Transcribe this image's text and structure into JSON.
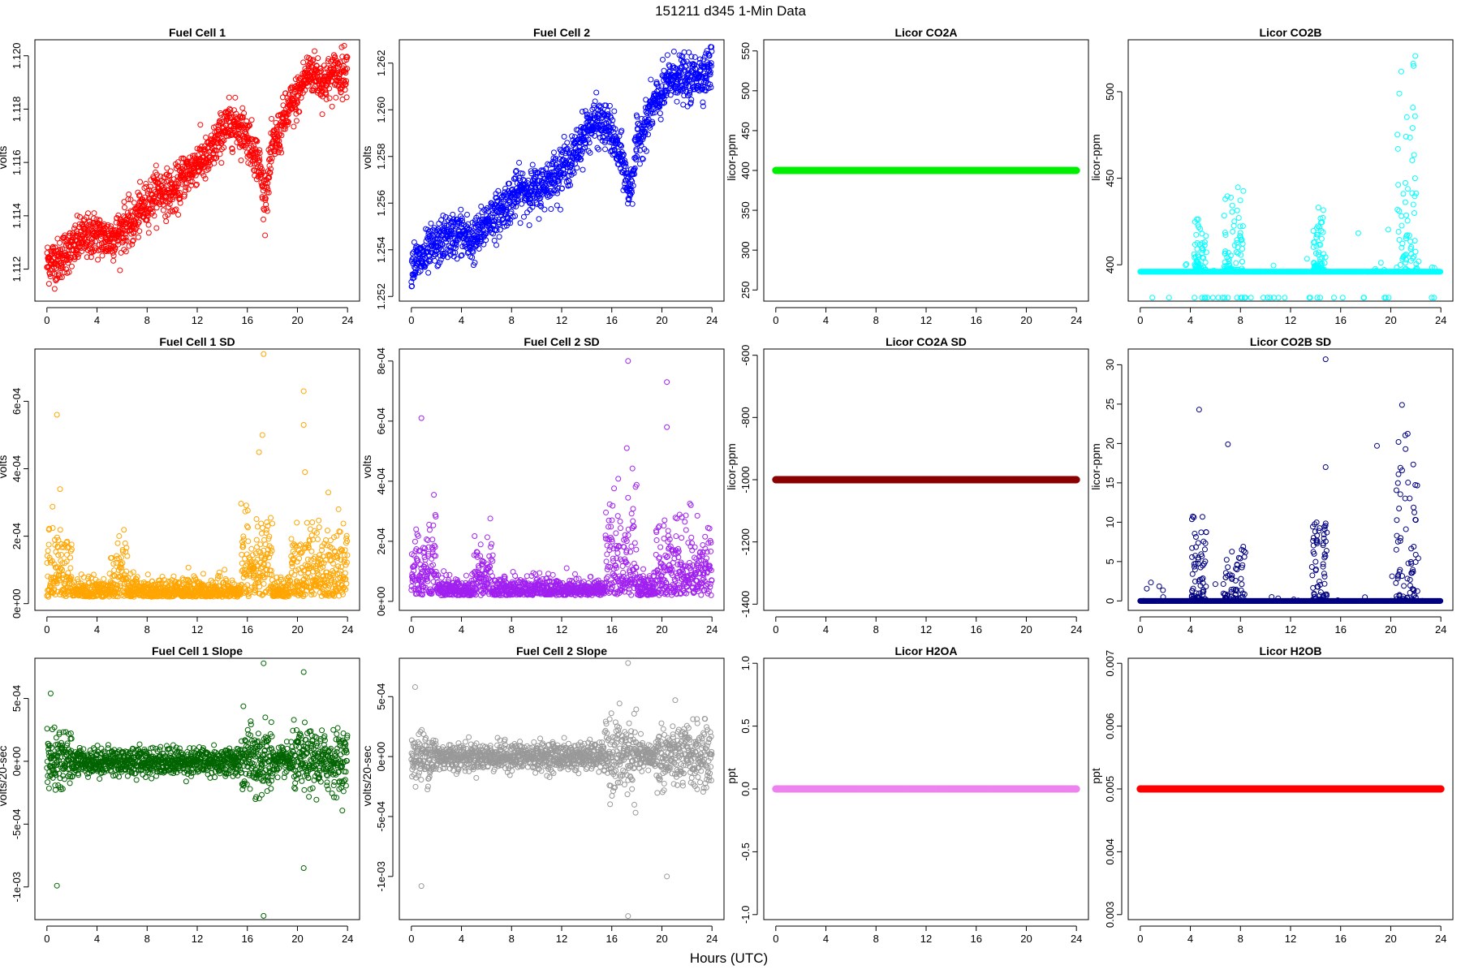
{
  "figure": {
    "title": "151211    d345    1-Min Data",
    "xlabel": "Hours (UTC)"
  },
  "chart_data": [
    {
      "type": "scatter",
      "title": "Fuel Cell 1",
      "ylabel": "volts",
      "color": "#ff0000",
      "marker": "open-circle",
      "xlim": [
        0,
        24
      ],
      "ylim": [
        1.1108,
        1.1206
      ],
      "xticks": [
        "0",
        "4",
        "8",
        "12",
        "16",
        "20",
        "24"
      ],
      "yticks": [
        {
          "v": 1.112,
          "label": "1.112"
        },
        {
          "v": 1.114,
          "label": "1.114"
        },
        {
          "v": 1.116,
          "label": "1.116"
        },
        {
          "v": 1.118,
          "label": "1.118"
        },
        {
          "v": 1.12,
          "label": "1.120"
        }
      ],
      "trend_hours": [
        0,
        1,
        2,
        3,
        4,
        5,
        6,
        7,
        8,
        9,
        10,
        11,
        12,
        13,
        14,
        15,
        16,
        16.5,
        17,
        17.3,
        17.6,
        18,
        19,
        20,
        21,
        22,
        23,
        24
      ],
      "trend_values": [
        1.1122,
        1.1124,
        1.1128,
        1.1132,
        1.1133,
        1.1131,
        1.1135,
        1.1138,
        1.1145,
        1.115,
        1.1148,
        1.1155,
        1.116,
        1.1162,
        1.1172,
        1.1175,
        1.117,
        1.1165,
        1.1158,
        1.1148,
        1.1152,
        1.1165,
        1.1177,
        1.1185,
        1.1195,
        1.119,
        1.1193,
        1.1195
      ],
      "noise_fraction": 0.07
    },
    {
      "type": "scatter",
      "title": "Fuel Cell 2",
      "ylabel": "volts",
      "color": "#0000ff",
      "marker": "open-circle",
      "xlim": [
        0,
        24
      ],
      "ylim": [
        1.2518,
        1.263
      ],
      "xticks": [
        "0",
        "4",
        "8",
        "12",
        "16",
        "20",
        "24"
      ],
      "yticks": [
        {
          "v": 1.252,
          "label": "1.252"
        },
        {
          "v": 1.254,
          "label": "1.254"
        },
        {
          "v": 1.256,
          "label": "1.256"
        },
        {
          "v": 1.258,
          "label": "1.258"
        },
        {
          "v": 1.26,
          "label": "1.260"
        },
        {
          "v": 1.262,
          "label": "1.262"
        }
      ],
      "trend_hours": [
        0,
        1,
        2,
        3,
        4,
        5,
        6,
        7,
        8,
        9,
        10,
        11,
        12,
        13,
        14,
        15,
        16,
        16.5,
        17,
        17.3,
        17.6,
        18,
        19,
        20,
        21,
        22,
        23,
        24
      ],
      "trend_values": [
        1.2533,
        1.2537,
        1.2542,
        1.2546,
        1.2547,
        1.2543,
        1.2552,
        1.2556,
        1.2562,
        1.2566,
        1.2565,
        1.257,
        1.2575,
        1.258,
        1.2592,
        1.2595,
        1.259,
        1.2582,
        1.2575,
        1.2565,
        1.257,
        1.2585,
        1.2598,
        1.2607,
        1.2615,
        1.2612,
        1.2615,
        1.2618
      ],
      "noise_fraction": 0.07
    },
    {
      "type": "scatter",
      "title": "Licor CO2A",
      "ylabel": "licor-ppm",
      "color": "#00ee00",
      "marker": "open-circle",
      "xlim": [
        0,
        24
      ],
      "ylim": [
        236,
        564
      ],
      "xticks": [
        "0",
        "4",
        "8",
        "12",
        "16",
        "20",
        "24"
      ],
      "yticks": [
        {
          "v": 250,
          "label": "250"
        },
        {
          "v": 300,
          "label": "300"
        },
        {
          "v": 350,
          "label": "350"
        },
        {
          "v": 400,
          "label": "400"
        },
        {
          "v": 450,
          "label": "450"
        },
        {
          "v": 500,
          "label": "500"
        },
        {
          "v": 550,
          "label": "550"
        }
      ],
      "constant_value": 400
    },
    {
      "type": "scatter",
      "title": "Licor CO2B",
      "ylabel": "licor-ppm",
      "color": "#00ffff",
      "marker": "open-circle",
      "xlim": [
        0,
        24
      ],
      "ylim": [
        379,
        530
      ],
      "xticks": [
        "0",
        "4",
        "8",
        "12",
        "16",
        "20",
        "24"
      ],
      "yticks": [
        {
          "v": 400,
          "label": "400"
        },
        {
          "v": 450,
          "label": "450"
        },
        {
          "v": 500,
          "label": "500"
        }
      ],
      "baseline_value": 396,
      "spike_clusters": [
        {
          "center": 4.8,
          "width": 0.5,
          "max": 427
        },
        {
          "center": 7.5,
          "width": 0.8,
          "max": 446
        },
        {
          "center": 14.3,
          "width": 0.5,
          "max": 435
        },
        {
          "center": 21.3,
          "width": 0.8,
          "max": 525
        }
      ]
    },
    {
      "type": "scatter",
      "title": "Fuel Cell 1 SD",
      "ylabel": "volts",
      "color": "#ffa500",
      "marker": "open-circle",
      "xlim": [
        0,
        24
      ],
      "ylim": [
        -2e-05,
        0.000755
      ],
      "xticks": [
        "0",
        "4",
        "8",
        "12",
        "16",
        "20",
        "24"
      ],
      "yticks": [
        {
          "v": 0,
          "label": "0e+00"
        },
        {
          "v": 0.0002,
          "label": "2e-04"
        },
        {
          "v": 0.0004,
          "label": "4e-04"
        },
        {
          "v": 0.0006,
          "label": "6e-04"
        }
      ],
      "baseline_value": 2e-05,
      "noisy_ranges": [
        [
          0,
          2,
          0.0003
        ],
        [
          5,
          6.5,
          0.00024
        ],
        [
          15.5,
          18,
          0.00038
        ],
        [
          19.5,
          24,
          0.00032
        ]
      ],
      "outliers": [
        [
          0.8,
          0.00056
        ],
        [
          17.3,
          0.00074
        ],
        [
          17.2,
          0.0005
        ],
        [
          20.5,
          0.00063
        ],
        [
          20.5,
          0.00053
        ],
        [
          20.6,
          0.00039
        ]
      ]
    },
    {
      "type": "scatter",
      "title": "Fuel Cell 2 SD",
      "ylabel": "volts",
      "color": "#a020f0",
      "marker": "open-circle",
      "xlim": [
        0,
        24
      ],
      "ylim": [
        -3e-05,
        0.00084
      ],
      "xticks": [
        "0",
        "4",
        "8",
        "12",
        "16",
        "20",
        "24"
      ],
      "yticks": [
        {
          "v": 0,
          "label": "0e+00"
        },
        {
          "v": 0.0002,
          "label": "2e-04"
        },
        {
          "v": 0.0004,
          "label": "4e-04"
        },
        {
          "v": 0.0006,
          "label": "6e-04"
        },
        {
          "v": 0.0008,
          "label": "8e-04"
        }
      ],
      "baseline_value": 2e-05,
      "noisy_ranges": [
        [
          0,
          2,
          0.00035
        ],
        [
          5,
          6.5,
          0.00026
        ],
        [
          15.5,
          18,
          0.00045
        ],
        [
          19.5,
          24,
          0.00035
        ]
      ],
      "outliers": [
        [
          0.8,
          0.00061
        ],
        [
          17.3,
          0.0008
        ],
        [
          17.2,
          0.00051
        ],
        [
          20.4,
          0.00073
        ],
        [
          20.4,
          0.00058
        ]
      ]
    },
    {
      "type": "scatter",
      "title": "Licor CO2A SD",
      "ylabel": "licor-ppm",
      "color": "#8b0000",
      "marker": "open-circle",
      "xlim": [
        0,
        24
      ],
      "ylim": [
        -1420,
        -580
      ],
      "xticks": [
        "0",
        "4",
        "8",
        "12",
        "16",
        "20",
        "24"
      ],
      "yticks": [
        {
          "v": -1400,
          "label": "-1400"
        },
        {
          "v": -1200,
          "label": "-1200"
        },
        {
          "v": -1000,
          "label": "-1000"
        },
        {
          "v": -800,
          "label": "-800"
        },
        {
          "v": -600,
          "label": "-600"
        }
      ],
      "constant_value": -1000
    },
    {
      "type": "scatter",
      "title": "Licor CO2B SD",
      "ylabel": "licor-ppm",
      "color": "#000080",
      "marker": "open-circle",
      "xlim": [
        0,
        24
      ],
      "ylim": [
        -1.2,
        32
      ],
      "xticks": [
        "0",
        "4",
        "8",
        "12",
        "16",
        "20",
        "24"
      ],
      "yticks": [
        {
          "v": 0,
          "label": "0"
        },
        {
          "v": 5,
          "label": "5"
        },
        {
          "v": 10,
          "label": "10"
        },
        {
          "v": 15,
          "label": "15"
        },
        {
          "v": 20,
          "label": "20"
        },
        {
          "v": 25,
          "label": "25"
        },
        {
          "v": 30,
          "label": "30"
        }
      ],
      "baseline_value": 0,
      "spike_clusters": [
        {
          "center": 4.7,
          "width": 0.6,
          "max": 11
        },
        {
          "center": 7.5,
          "width": 0.9,
          "max": 7
        },
        {
          "center": 14.3,
          "width": 0.6,
          "max": 10
        },
        {
          "center": 21.3,
          "width": 0.9,
          "max": 22
        }
      ],
      "outliers": [
        [
          4.7,
          24.3
        ],
        [
          7.0,
          19.9
        ],
        [
          14.8,
          30.7
        ],
        [
          14.8,
          17.0
        ],
        [
          20.9,
          24.9
        ],
        [
          18.9,
          19.7
        ]
      ]
    },
    {
      "type": "scatter",
      "title": "Fuel Cell 1 Slope",
      "ylabel": "volts/20-sec",
      "color": "#006400",
      "marker": "open-circle",
      "xlim": [
        0,
        24
      ],
      "ylim": [
        -0.00126,
        0.00082
      ],
      "xticks": [
        "0",
        "4",
        "8",
        "12",
        "16",
        "20",
        "24"
      ],
      "yticks": [
        {
          "v": -0.001,
          "label": "-1e-03"
        },
        {
          "v": -0.0005,
          "label": "-5e-04"
        },
        {
          "v": 0,
          "label": "0e+00"
        },
        {
          "v": 0.0005,
          "label": "5e-04"
        }
      ],
      "baseline_value": 0,
      "noisy_ranges": [
        [
          0,
          2,
          0.0004
        ],
        [
          5,
          6.5,
          0.0002
        ],
        [
          15.5,
          18,
          0.00055
        ],
        [
          19.5,
          24,
          0.00045
        ]
      ],
      "outliers": [
        [
          0.8,
          -0.00099
        ],
        [
          17.3,
          0.00078
        ],
        [
          17.3,
          -0.00123
        ],
        [
          20.5,
          0.00071
        ],
        [
          20.5,
          -0.00085
        ],
        [
          0.3,
          0.00054
        ]
      ]
    },
    {
      "type": "scatter",
      "title": "Fuel Cell 2 Slope",
      "ylabel": "volts/20-sec",
      "color": "#999999",
      "marker": "open-circle",
      "xlim": [
        0,
        24
      ],
      "ylim": [
        -0.00136,
        0.00082
      ],
      "xticks": [
        "0",
        "4",
        "8",
        "12",
        "16",
        "20",
        "24"
      ],
      "yticks": [
        {
          "v": -0.001,
          "label": "-1e-03"
        },
        {
          "v": -0.0005,
          "label": "-5e-04"
        },
        {
          "v": 0,
          "label": "0e+00"
        },
        {
          "v": 0.0005,
          "label": "5e-04"
        }
      ],
      "baseline_value": 0,
      "noisy_ranges": [
        [
          0,
          2,
          0.0004
        ],
        [
          5,
          6.5,
          0.0002
        ],
        [
          15.5,
          18,
          0.0006
        ],
        [
          19.5,
          24,
          0.0005
        ]
      ],
      "outliers": [
        [
          0.8,
          -0.00108
        ],
        [
          17.3,
          0.00078
        ],
        [
          17.3,
          -0.00133
        ],
        [
          20.4,
          -0.001
        ],
        [
          0.3,
          0.00058
        ]
      ]
    },
    {
      "type": "scatter",
      "title": "Licor H2OA",
      "ylabel": "ppt",
      "color": "#ee82ee",
      "marker": "open-circle",
      "xlim": [
        0,
        24
      ],
      "ylim": [
        -1.04,
        1.04
      ],
      "xticks": [
        "0",
        "4",
        "8",
        "12",
        "16",
        "20",
        "24"
      ],
      "yticks": [
        {
          "v": -1.0,
          "label": "-1.0"
        },
        {
          "v": -0.5,
          "label": "-0.5"
        },
        {
          "v": 0.0,
          "label": "0.0"
        },
        {
          "v": 0.5,
          "label": "0.5"
        },
        {
          "v": 1.0,
          "label": "1.0"
        }
      ],
      "constant_value": 0
    },
    {
      "type": "scatter",
      "title": "Licor H2OB",
      "ylabel": "ppt",
      "color": "#ff0000",
      "marker": "open-circle",
      "xlim": [
        0,
        24
      ],
      "ylim": [
        0.00292,
        0.00708
      ],
      "xticks": [
        "0",
        "4",
        "8",
        "12",
        "16",
        "20",
        "24"
      ],
      "yticks": [
        {
          "v": 0.003,
          "label": "0.003"
        },
        {
          "v": 0.004,
          "label": "0.004"
        },
        {
          "v": 0.005,
          "label": "0.005"
        },
        {
          "v": 0.006,
          "label": "0.006"
        },
        {
          "v": 0.007,
          "label": "0.007"
        }
      ],
      "constant_value": 0.005
    }
  ]
}
